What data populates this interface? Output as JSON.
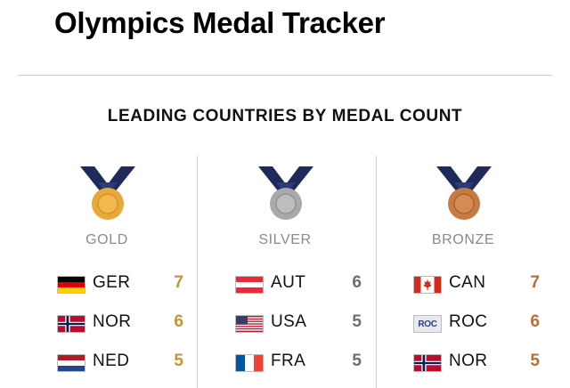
{
  "page": {
    "title": "Olympics Medal Tracker",
    "subtitle": "LEADING COUNTRIES BY MEDAL COUNT"
  },
  "colors": {
    "ribbon": "#1e2a5a",
    "gold": "#e8a93a",
    "silver": "#a9a9a9",
    "bronze": "#c67b42",
    "gold_count": "#c79335",
    "silver_count": "#6e6e6e",
    "bronze_count": "#b86e37"
  },
  "columns": [
    {
      "label": "GOLD",
      "icon": "gold-medal-icon",
      "rows": [
        {
          "code": "GER",
          "count": "7",
          "flag": "germany-flag-icon"
        },
        {
          "code": "NOR",
          "count": "6",
          "flag": "norway-flag-icon"
        },
        {
          "code": "NED",
          "count": "5",
          "flag": "netherlands-flag-icon"
        }
      ]
    },
    {
      "label": "SILVER",
      "icon": "silver-medal-icon",
      "rows": [
        {
          "code": "AUT",
          "count": "6",
          "flag": "austria-flag-icon"
        },
        {
          "code": "USA",
          "count": "5",
          "flag": "usa-flag-icon"
        },
        {
          "code": "FRA",
          "count": "5",
          "flag": "france-flag-icon"
        }
      ]
    },
    {
      "label": "BRONZE",
      "icon": "bronze-medal-icon",
      "rows": [
        {
          "code": "CAN",
          "count": "7",
          "flag": "canada-flag-icon"
        },
        {
          "code": "ROC",
          "count": "6",
          "flag": "roc-flag-icon",
          "flag_text": "ROC"
        },
        {
          "code": "NOR",
          "count": "5",
          "flag": "norway-flag-icon"
        }
      ]
    }
  ]
}
